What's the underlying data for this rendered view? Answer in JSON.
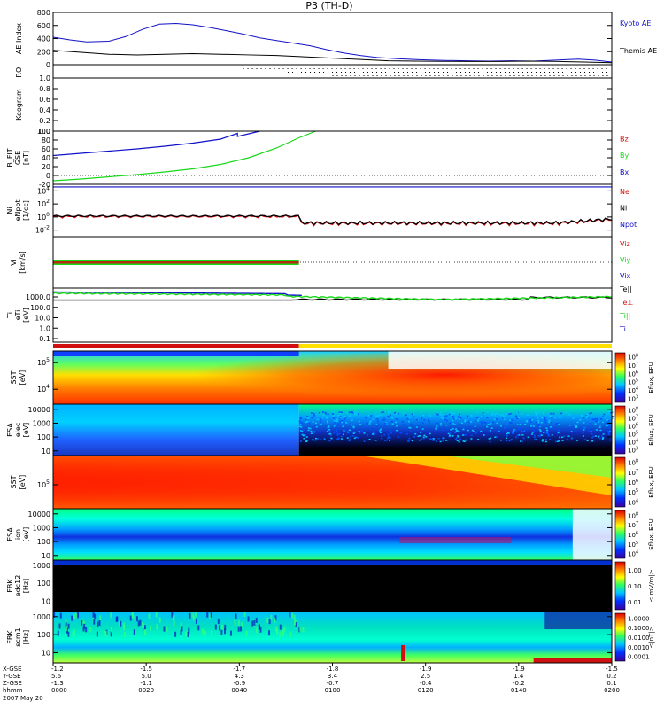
{
  "title": "P3 (TH-D)",
  "colors": {
    "blue": "#1010c8",
    "green": "#18d818",
    "red": "#d01010",
    "black": "#000000"
  },
  "chart_data": [
    {
      "type": "line",
      "panel": "ae",
      "ylabel": "AE Index",
      "yticks": [
        "0",
        "200",
        "400",
        "600",
        "800"
      ],
      "ylim": [
        0,
        800
      ],
      "legend": [
        "Kyoto AE",
        "Themis AE"
      ],
      "series": [
        {
          "name": "Kyoto AE",
          "color": "#1010c8",
          "x": [
            0,
            0.03,
            0.06,
            0.1,
            0.13,
            0.16,
            0.19,
            0.22,
            0.25,
            0.28,
            0.31,
            0.34,
            0.37,
            0.4,
            0.43,
            0.46,
            0.49,
            0.52,
            0.55,
            0.58,
            0.62,
            0.66,
            0.7,
            0.74,
            0.78,
            0.82,
            0.86,
            0.9,
            0.94,
            0.97,
            1
          ],
          "values": [
            420,
            380,
            350,
            360,
            430,
            540,
            620,
            630,
            610,
            570,
            520,
            470,
            410,
            370,
            330,
            290,
            230,
            180,
            140,
            110,
            90,
            75,
            65,
            60,
            55,
            60,
            55,
            70,
            85,
            70,
            40
          ]
        },
        {
          "name": "Themis AE",
          "color": "#000000",
          "x": [
            0,
            0.05,
            0.1,
            0.15,
            0.2,
            0.25,
            0.3,
            0.35,
            0.4,
            0.45,
            0.5,
            0.55,
            0.6,
            0.65,
            0.7,
            0.75,
            0.8,
            0.85,
            0.9,
            0.95,
            1
          ],
          "values": [
            220,
            190,
            160,
            150,
            160,
            170,
            160,
            150,
            140,
            120,
            100,
            80,
            60,
            55,
            50,
            50,
            50,
            55,
            50,
            40,
            30
          ]
        }
      ]
    },
    {
      "type": "scatter",
      "panel": "roi",
      "ylabel": "ROI",
      "xstart": 0.34
    },
    {
      "type": "line",
      "panel": "keogram",
      "ylabel": "Keogram",
      "yticks": [
        "0.0",
        "0.2",
        "0.4",
        "0.6",
        "0.8",
        "1.0"
      ],
      "ylim": [
        0,
        1
      ]
    },
    {
      "type": "line",
      "panel": "bfit",
      "ylabel": "B_FIT",
      "ylabel2": "GSE",
      "ylabel3": "[nT]",
      "yticks": [
        "-20",
        "0",
        "20",
        "40",
        "60",
        "80",
        "100"
      ],
      "ylim": [
        -20,
        100
      ],
      "legend": [
        "Bz",
        "By",
        "Bx"
      ],
      "series": [
        {
          "name": "Bx",
          "color": "#1010c8",
          "x": [
            0,
            0.05,
            0.1,
            0.15,
            0.2,
            0.25,
            0.3,
            0.33,
            0.33,
            0.37
          ],
          "values": [
            45,
            50,
            55,
            60,
            66,
            73,
            82,
            95,
            88,
            100
          ]
        },
        {
          "name": "By",
          "color": "#18d818",
          "x": [
            0,
            0.05,
            0.1,
            0.15,
            0.2,
            0.25,
            0.3,
            0.35,
            0.4,
            0.44,
            0.47
          ],
          "values": [
            -12,
            -8,
            -3,
            2,
            8,
            15,
            25,
            40,
            62,
            85,
            100
          ]
        }
      ]
    },
    {
      "type": "scatter",
      "panel": "density",
      "ylabel": "Ni",
      "ylabel2": "eNpot",
      "ylabel3": "[1/cc]",
      "ytick_exps": [
        "4",
        "2",
        "0",
        "-2"
      ],
      "ylim_exp": [
        -3,
        5
      ],
      "legend": [
        "Ne",
        "Ni",
        "Npot"
      ]
    },
    {
      "type": "scatter",
      "panel": "velocity",
      "ylabel": "Vi",
      "ylabel3": "[km/s]",
      "legend": [
        "Viz",
        "Viy",
        "Vix"
      ]
    },
    {
      "type": "line",
      "panel": "temperature",
      "ylabel": "Ti",
      "ylabel2": "eTi",
      "ylabel3": "[eV]",
      "yticks": [
        "1000.0",
        "100.0",
        "10.0",
        "1.0",
        "0.1"
      ],
      "legend": [
        "Te||",
        "Te⊥",
        "Ti||",
        "Ti⊥"
      ]
    },
    {
      "type": "heatmap",
      "panel": "sst_e",
      "ylabel": "SST",
      "ylabel3": "[eV]",
      "ytick_exps": [
        "5",
        "4"
      ],
      "cbar": [
        "8",
        "7",
        "6",
        "5",
        "4",
        "3"
      ],
      "cbar_label": "Eflux, EFU"
    },
    {
      "type": "heatmap",
      "panel": "esa_e",
      "ylabel": "ESA",
      "ylabel2": "elec",
      "ylabel3": "[eV]",
      "yticks": [
        "10000",
        "1000",
        "100",
        "10"
      ],
      "cbar": [
        "8",
        "7",
        "6",
        "5",
        "4",
        "3"
      ],
      "cbar_label": "Eflux, EFU"
    },
    {
      "type": "heatmap",
      "panel": "sst_i",
      "ylabel": "SST",
      "ylabel3": "[eV]",
      "ytick_exps": [
        "5"
      ],
      "cbar": [
        "8",
        "7",
        "6",
        "5",
        "4"
      ],
      "cbar_label": "Eflux, EFU"
    },
    {
      "type": "heatmap",
      "panel": "esa_i",
      "ylabel": "ESA",
      "ylabel2": "ion",
      "ylabel3": "[eV]",
      "yticks": [
        "10000",
        "1000",
        "100",
        "10"
      ],
      "cbar": [
        "8",
        "7",
        "6",
        "5",
        "4"
      ],
      "cbar_label": "Eflux, EFU"
    },
    {
      "type": "heatmap",
      "panel": "fbk1",
      "ylabel": "FBK",
      "ylabel2": "edc12",
      "ylabel3": "[Hz]",
      "yticks": [
        "1000",
        "100",
        "10"
      ],
      "cbar": [
        "1.00",
        "0.10",
        "0.01"
      ],
      "cbar_label": "<|mV/m|>"
    },
    {
      "type": "heatmap",
      "panel": "fbk2",
      "ylabel": "FBK",
      "ylabel2": "scm1",
      "ylabel3": "[Hz]",
      "yticks": [
        "1000",
        "100",
        "10"
      ],
      "cbar": [
        "1.0000",
        "0.1000",
        "0.0100",
        "0.0010",
        "0.0001"
      ],
      "cbar_label": "<|nT|>"
    }
  ],
  "xaxis": {
    "row_labels": [
      "X-GSE",
      "Y-GSE",
      "Z-GSE",
      "hhmm",
      "2007 May 20"
    ],
    "ticks": [
      {
        "x": "-1.2",
        "y": "5.6",
        "z": "-1.3",
        "t": "0000"
      },
      {
        "x": "-1.5",
        "y": "5.0",
        "z": "-1.1",
        "t": "0020"
      },
      {
        "x": "-1.7",
        "y": "4.3",
        "z": "-0.9",
        "t": "0040"
      },
      {
        "x": "-1.8",
        "y": "3.4",
        "z": "-0.7",
        "t": "0100"
      },
      {
        "x": "-1.9",
        "y": "2.5",
        "z": "-0.4",
        "t": "0120"
      },
      {
        "x": "-1.9",
        "y": "1.4",
        "z": "-0.2",
        "t": "0140"
      },
      {
        "x": "-1.5",
        "y": "0.2",
        "z": "0.1",
        "t": "0200"
      }
    ]
  }
}
